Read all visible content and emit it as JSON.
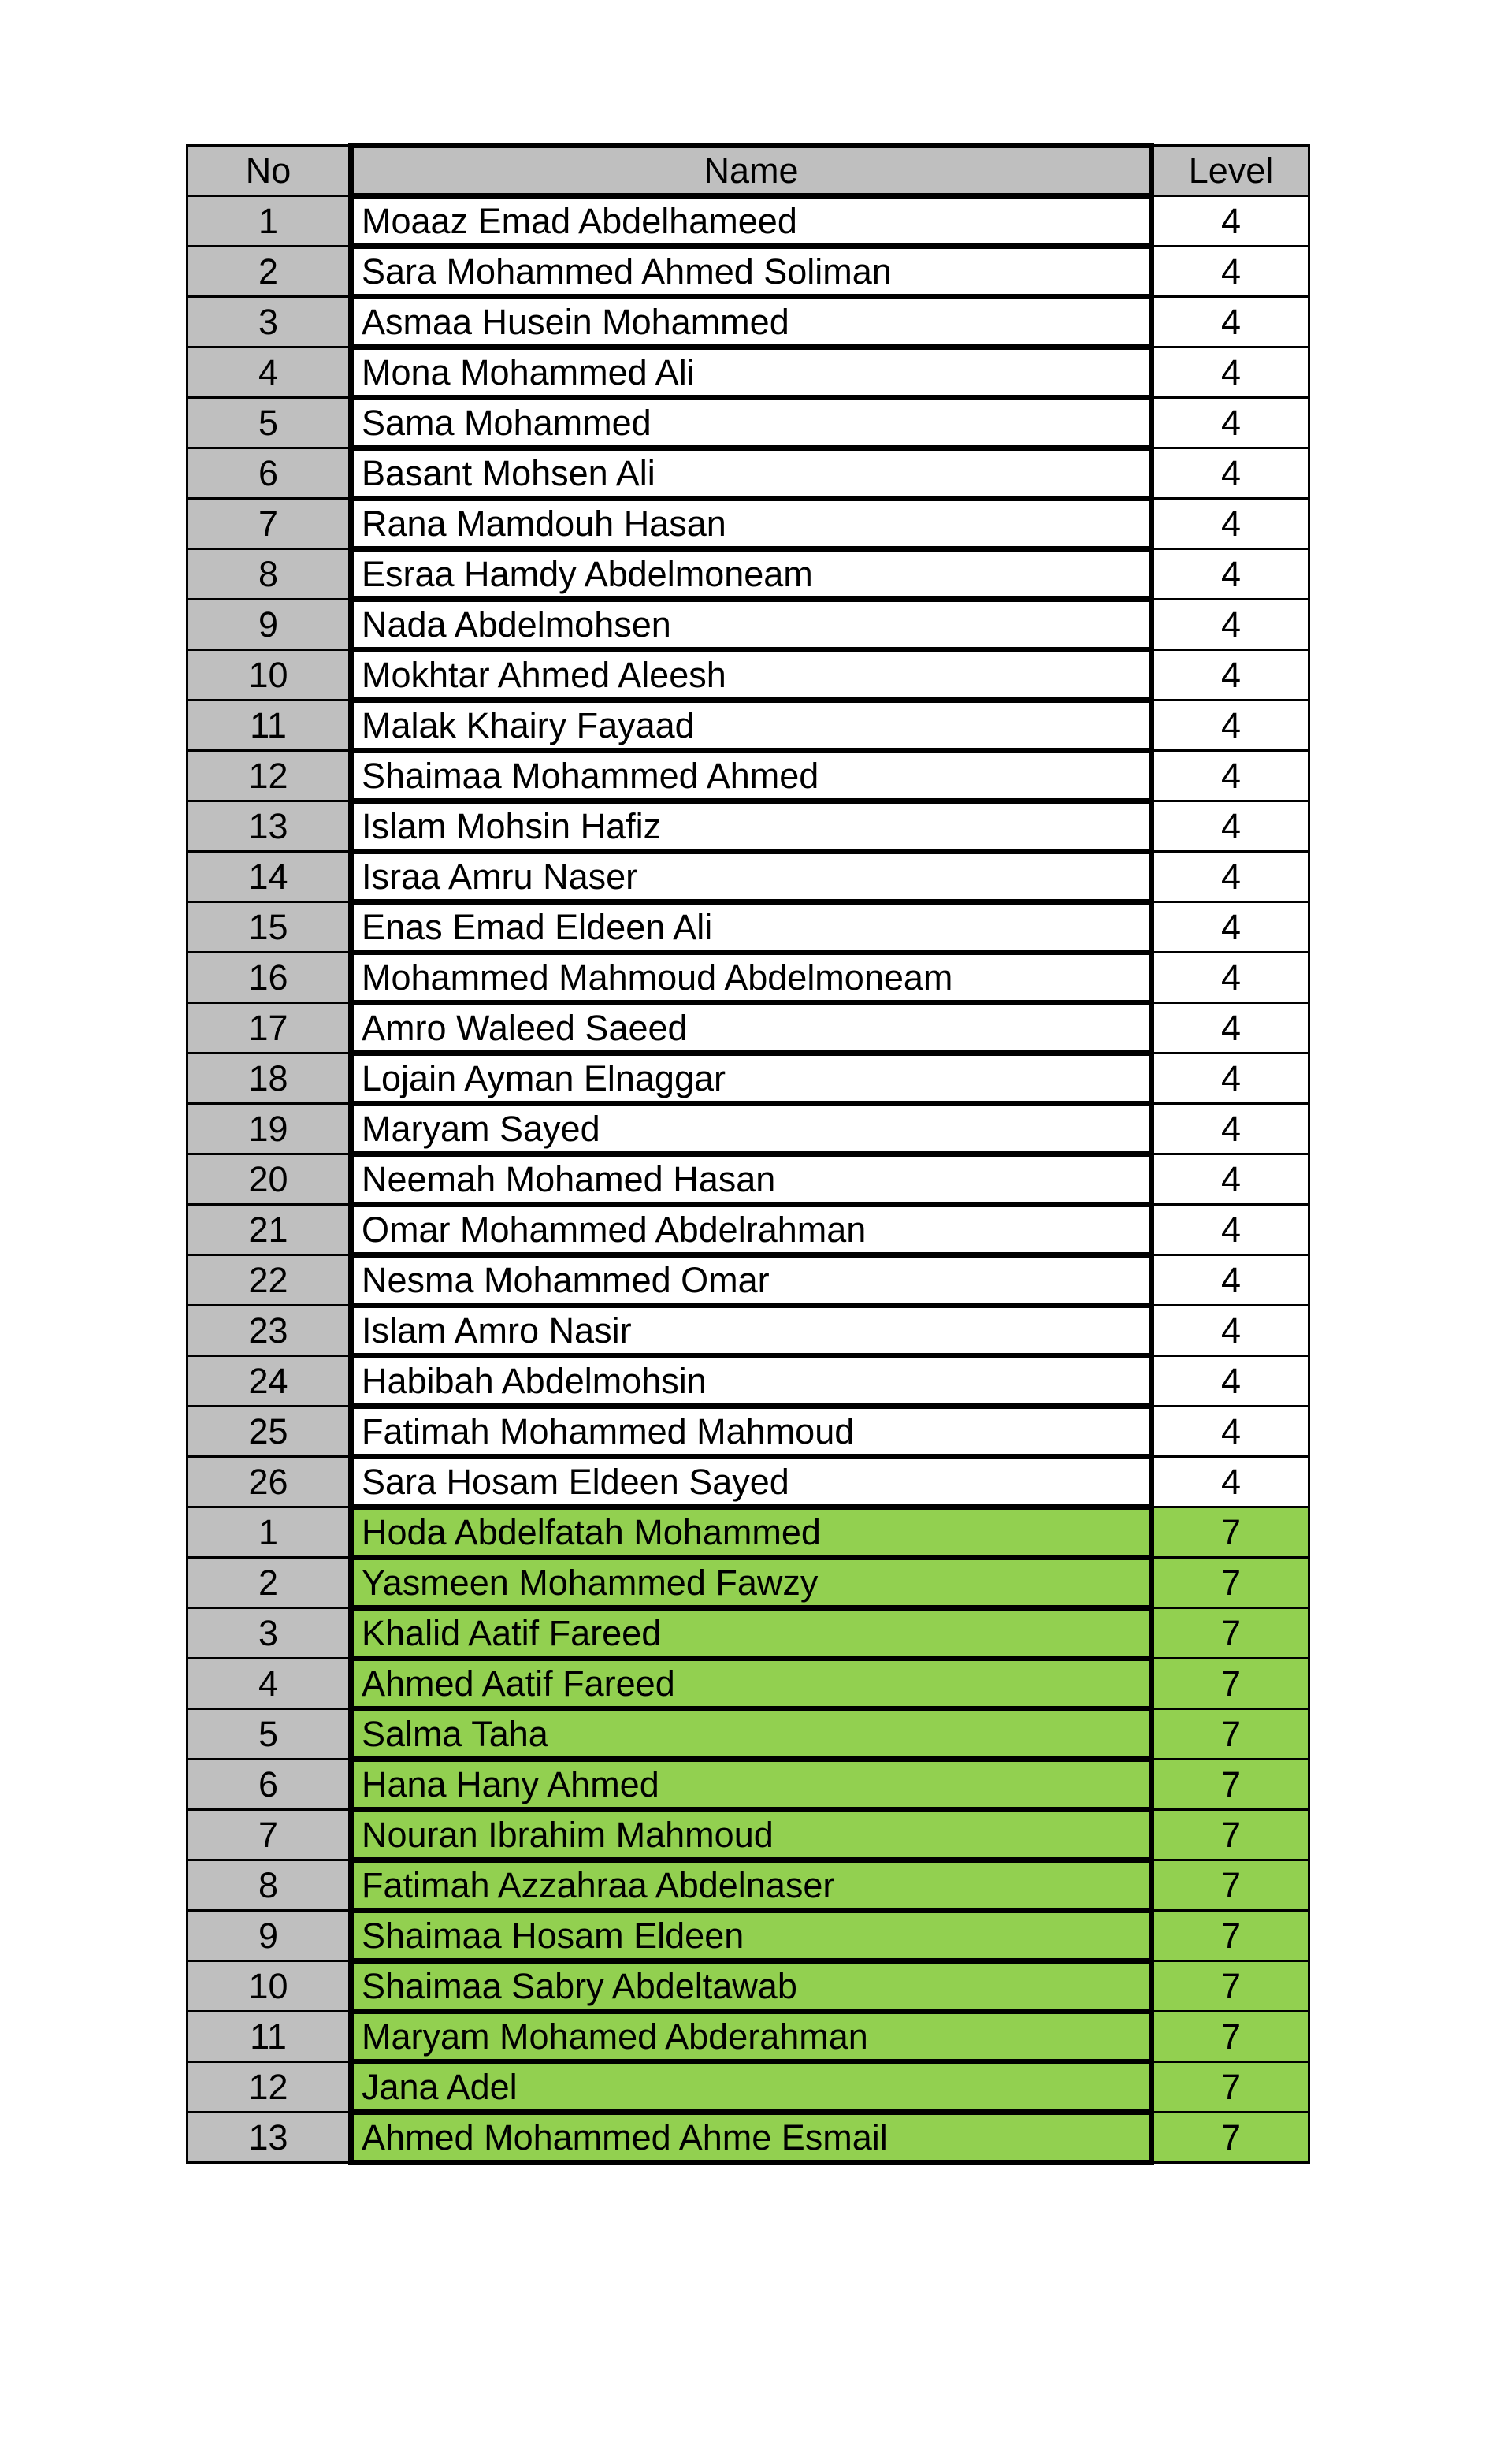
{
  "page": {
    "background": "#ffffff"
  },
  "table": {
    "headers": {
      "no": "No",
      "name": "Name",
      "level": "Level"
    },
    "colors": {
      "header_bg": "#bfbfbf",
      "no_column_bg": "#bfbfbf",
      "level4_row_bg": "#ffffff",
      "level7_row_bg": "#92d050",
      "border": "#000000",
      "text": "#000000"
    },
    "rows": [
      {
        "no": "1",
        "name": "Moaaz Emad Abdelhameed",
        "level": "4"
      },
      {
        "no": "2",
        "name": "Sara Mohammed Ahmed Soliman",
        "level": "4"
      },
      {
        "no": "3",
        "name": "Asmaa Husein Mohammed",
        "level": "4"
      },
      {
        "no": "4",
        "name": "Mona Mohammed Ali",
        "level": "4"
      },
      {
        "no": "5",
        "name": "Sama Mohammed",
        "level": "4"
      },
      {
        "no": "6",
        "name": "Basant Mohsen Ali",
        "level": "4"
      },
      {
        "no": "7",
        "name": "Rana Mamdouh Hasan",
        "level": "4"
      },
      {
        "no": "8",
        "name": "Esraa Hamdy Abdelmoneam",
        "level": "4"
      },
      {
        "no": "9",
        "name": "Nada Abdelmohsen",
        "level": "4"
      },
      {
        "no": "10",
        "name": "Mokhtar Ahmed Aleesh",
        "level": "4"
      },
      {
        "no": "11",
        "name": "Malak Khairy Fayaad",
        "level": "4"
      },
      {
        "no": "12",
        "name": "Shaimaa Mohammed Ahmed",
        "level": "4"
      },
      {
        "no": "13",
        "name": "Islam Mohsin Hafiz",
        "level": "4"
      },
      {
        "no": "14",
        "name": "Israa Amru Naser",
        "level": "4"
      },
      {
        "no": "15",
        "name": "Enas Emad Eldeen Ali",
        "level": "4"
      },
      {
        "no": "16",
        "name": "Mohammed Mahmoud Abdelmoneam",
        "level": "4"
      },
      {
        "no": "17",
        "name": "Amro Waleed Saeed",
        "level": "4"
      },
      {
        "no": "18",
        "name": "Lojain Ayman Elnaggar",
        "level": "4"
      },
      {
        "no": "19",
        "name": "Maryam Sayed",
        "level": "4"
      },
      {
        "no": "20",
        "name": "Neemah Mohamed Hasan",
        "level": "4"
      },
      {
        "no": "21",
        "name": "Omar Mohammed Abdelrahman",
        "level": "4"
      },
      {
        "no": "22",
        "name": "Nesma Mohammed Omar",
        "level": "4"
      },
      {
        "no": "23",
        "name": "Islam Amro Nasir",
        "level": "4"
      },
      {
        "no": "24",
        "name": "Habibah Abdelmohsin",
        "level": "4"
      },
      {
        "no": "25",
        "name": "Fatimah Mohammed Mahmoud",
        "level": "4"
      },
      {
        "no": "26",
        "name": "Sara Hosam Eldeen Sayed",
        "level": "4"
      },
      {
        "no": "1",
        "name": "Hoda Abdelfatah Mohammed",
        "level": "7"
      },
      {
        "no": "2",
        "name": "Yasmeen Mohammed Fawzy",
        "level": "7"
      },
      {
        "no": "3",
        "name": "Khalid Aatif Fareed",
        "level": "7"
      },
      {
        "no": "4",
        "name": "Ahmed Aatif Fareed",
        "level": "7"
      },
      {
        "no": "5",
        "name": "Salma Taha",
        "level": "7"
      },
      {
        "no": "6",
        "name": "Hana Hany Ahmed",
        "level": "7"
      },
      {
        "no": "7",
        "name": "Nouran Ibrahim Mahmoud",
        "level": "7"
      },
      {
        "no": "8",
        "name": "Fatimah Azzahraa Abdelnaser",
        "level": "7"
      },
      {
        "no": "9",
        "name": "Shaimaa Hosam Eldeen",
        "level": "7"
      },
      {
        "no": "10",
        "name": "Shaimaa Sabry Abdeltawab",
        "level": "7"
      },
      {
        "no": "11",
        "name": "Maryam Mohamed Abderahman",
        "level": "7"
      },
      {
        "no": "12",
        "name": "Jana Adel",
        "level": "7"
      },
      {
        "no": "13",
        "name": "Ahmed Mohammed Ahme Esmail",
        "level": "7"
      }
    ]
  }
}
